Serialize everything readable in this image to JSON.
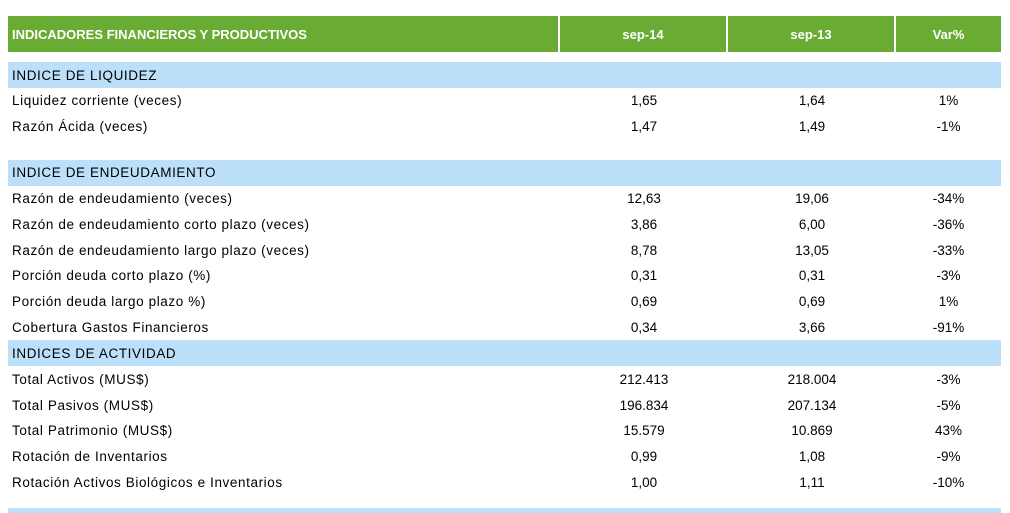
{
  "header": {
    "title": "INDICADORES FINANCIEROS Y PRODUCTIVOS",
    "col1": "sep-14",
    "col2": "sep-13",
    "col3": "Var%"
  },
  "sections": [
    {
      "title": "INDICE DE LIQUIDEZ",
      "rows": [
        [
          "Liquidez corriente (veces)",
          "1,65",
          "1,64",
          "1%"
        ],
        [
          "Razón Ácida (veces)",
          "1,47",
          "1,49",
          "-1%"
        ]
      ]
    },
    {
      "title": "INDICE DE ENDEUDAMIENTO",
      "rows": [
        [
          "Razón de endeudamiento (veces)",
          "12,63",
          "19,06",
          "-34%"
        ],
        [
          "Razón de endeudamiento corto plazo (veces)",
          "3,86",
          "6,00",
          "-36%"
        ],
        [
          "Razón de endeudamiento largo plazo (veces)",
          "8,78",
          "13,05",
          "-33%"
        ],
        [
          "Porción deuda corto plazo (%)",
          "0,31",
          "0,31",
          "-3%"
        ],
        [
          "Porción deuda largo plazo %)",
          "0,69",
          "0,69",
          "1%"
        ],
        [
          "Cobertura Gastos Financieros",
          "0,34",
          "3,66",
          "-91%"
        ]
      ]
    },
    {
      "title": "INDICES DE ACTIVIDAD",
      "rows": [
        [
          "Total Activos (MUS$)",
          "212.413",
          "218.004",
          "-3%"
        ],
        [
          "Total Pasivos (MUS$)",
          "196.834",
          "207.134",
          "-5%"
        ],
        [
          "Total Patrimonio (MUS$)",
          "15.579",
          "10.869",
          "43%"
        ],
        [
          "Rotación de Inventarios",
          "0,99",
          "1,08",
          "-9%"
        ],
        [
          "Rotación Activos Biológicos e Inventarios",
          "1,00",
          "1,11",
          "-10%"
        ]
      ]
    }
  ]
}
